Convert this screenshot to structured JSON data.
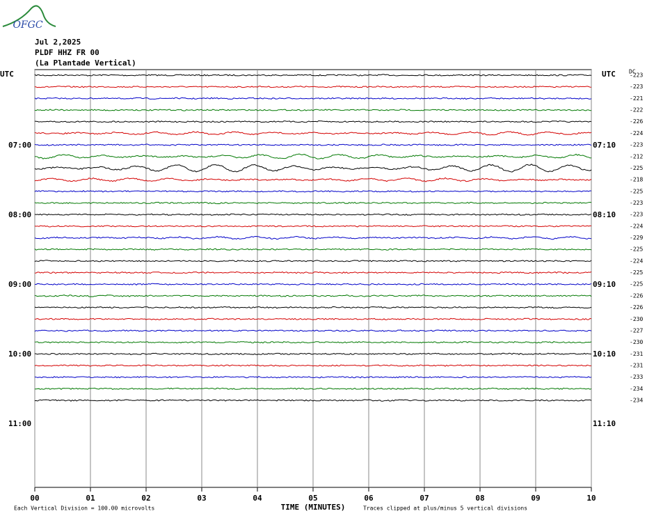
{
  "logo": "OFGC",
  "header": {
    "date": "Jul 2,2025",
    "station": "PLDF HHZ FR 00",
    "location": "(La Plantade Vertical)"
  },
  "left_labels": [
    "UTC",
    "07:00",
    "08:00",
    "09:00",
    "10:00",
    "11:00"
  ],
  "right_labels": [
    "UTC",
    "07:10",
    "08:10",
    "09:10",
    "10:10",
    "11:10"
  ],
  "dc_label": "DC",
  "dc_values": [
    "-223",
    "-223",
    "-221",
    "-222",
    "-226",
    "-224",
    "-223",
    "-212",
    "-225",
    "-218",
    "-225",
    "-223",
    "-223",
    "-224",
    "-229",
    "-225",
    "-224",
    "-225",
    "-225",
    "-226",
    "-226",
    "-230",
    "-227",
    "-230",
    "-231",
    "-231",
    "-233",
    "-234",
    "-234"
  ],
  "x_axis": {
    "title": "TIME (MINUTES)",
    "ticks": [
      "00",
      "01",
      "02",
      "03",
      "04",
      "05",
      "06",
      "07",
      "08",
      "09",
      "10"
    ]
  },
  "footer": {
    "scale": "Each Vertical Division =  100.00 microvolts",
    "clip": "Traces clipped at plus/minus 5 vertical divisions"
  },
  "trace_colors": [
    "#000000",
    "#d40000",
    "#0000c8",
    "#007800"
  ]
}
